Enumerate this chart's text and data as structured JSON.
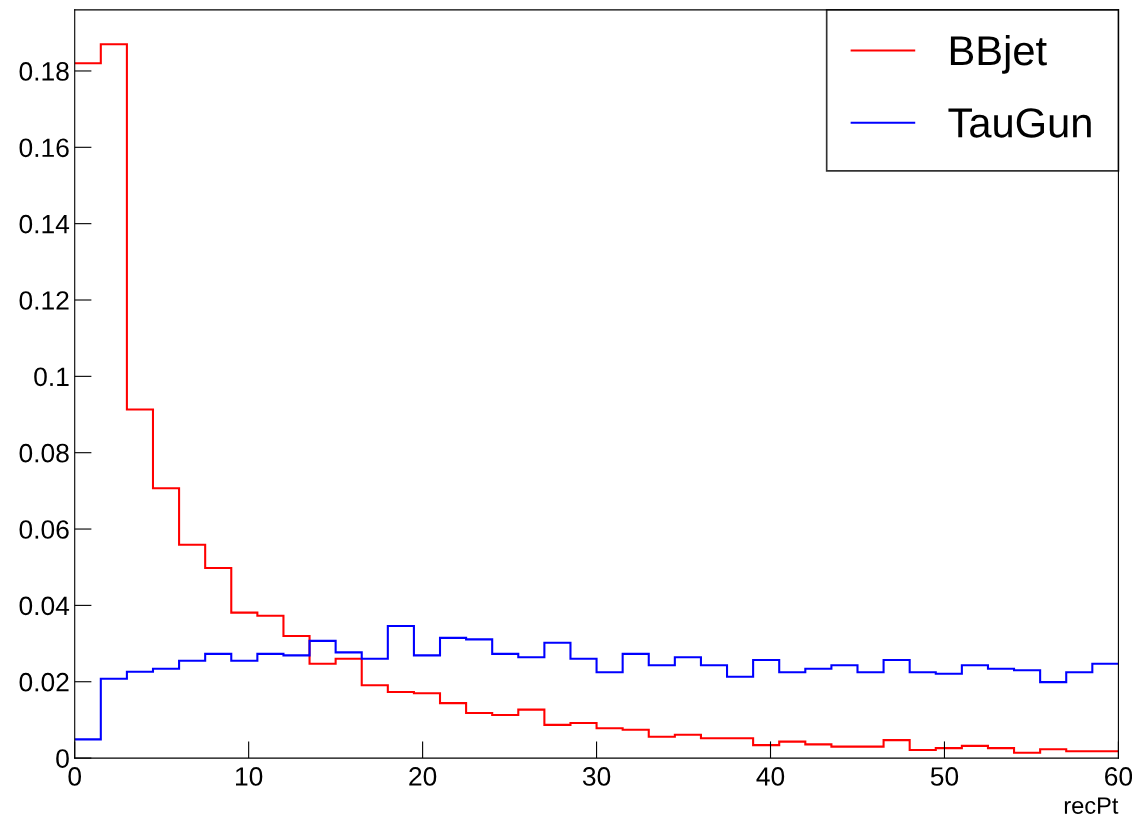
{
  "chart_data": {
    "type": "histogram",
    "xlabel": "recPt",
    "bins": [
      0,
      1.5,
      3,
      4.5,
      6,
      7.5,
      9,
      10.5,
      12,
      13.5,
      15,
      16.5,
      18,
      19.5,
      21,
      22.5,
      24,
      25.5,
      27,
      28.5,
      30,
      31.5,
      33,
      34.5,
      36,
      37.5,
      39,
      40.5,
      42,
      43.5,
      45,
      46.5,
      48,
      49.5,
      51,
      52.5,
      54,
      55.5,
      57,
      58.5,
      60
    ],
    "series": [
      {
        "name": "BBjet",
        "color": "#ff0000",
        "values": [
          0.182,
          0.187,
          0.0913,
          0.0707,
          0.0559,
          0.0498,
          0.0381,
          0.0373,
          0.032,
          0.0247,
          0.026,
          0.0191,
          0.0173,
          0.017,
          0.0144,
          0.0118,
          0.0113,
          0.0127,
          0.0087,
          0.0092,
          0.0078,
          0.0074,
          0.0056,
          0.0061,
          0.0052,
          0.0052,
          0.0034,
          0.0043,
          0.0036,
          0.003,
          0.003,
          0.0047,
          0.0021,
          0.0026,
          0.0032,
          0.0026,
          0.0014,
          0.0023,
          0.0018,
          0.0018
        ]
      },
      {
        "name": "TauGun",
        "color": "#0000ff",
        "values": [
          0.0049,
          0.0208,
          0.0226,
          0.0234,
          0.0255,
          0.0273,
          0.0255,
          0.0273,
          0.0269,
          0.0307,
          0.0277,
          0.026,
          0.0346,
          0.0269,
          0.0315,
          0.0311,
          0.0273,
          0.0264,
          0.0302,
          0.026,
          0.0225,
          0.0273,
          0.0243,
          0.0264,
          0.0243,
          0.0213,
          0.0257,
          0.0225,
          0.0234,
          0.0243,
          0.0225,
          0.0257,
          0.0225,
          0.0221,
          0.0243,
          0.0234,
          0.023,
          0.0199,
          0.0225,
          0.0247
        ]
      }
    ],
    "xlim": [
      0,
      60
    ],
    "ylim": [
      0,
      0.196
    ],
    "xticks": [
      0,
      10,
      20,
      30,
      40,
      50,
      60
    ],
    "yticks": [
      0,
      0.02,
      0.04,
      0.06,
      0.08,
      0.1,
      0.12,
      0.14,
      0.16,
      0.18
    ],
    "legend": "top right",
    "grid": false
  }
}
